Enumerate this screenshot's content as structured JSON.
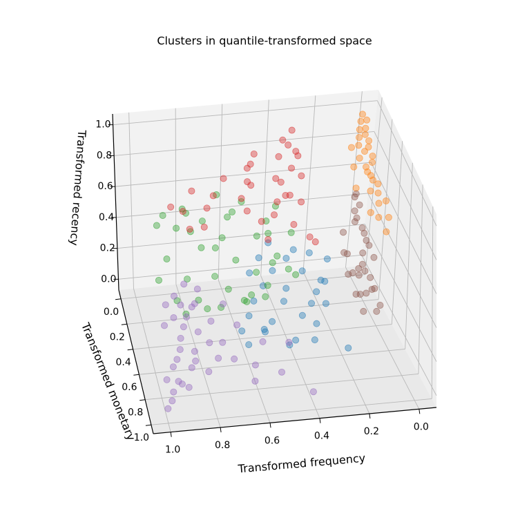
{
  "chart_data": {
    "type": "scatter3d",
    "title": "Clusters in quantile-transformed space",
    "xlabel": "Transformed frequency",
    "ylabel": "Transformed monetary",
    "zlabel": "Transformed recency",
    "xlim": [
      -0.07,
      1.07
    ],
    "ylim": [
      -0.07,
      1.07
    ],
    "zlim": [
      -0.07,
      1.07
    ],
    "xticks": [
      {
        "value": 0,
        "label": "0.0"
      },
      0.2,
      0.4,
      0.6,
      0.8,
      {
        "value": 1,
        "label": "1.0"
      }
    ],
    "yticks": [
      {
        "value": 0,
        "label": "0.0"
      },
      0.2,
      0.4,
      0.6,
      0.8,
      {
        "value": 1,
        "label": "1.0"
      }
    ],
    "zticks": [
      {
        "value": 0,
        "label": "0.0"
      },
      0.2,
      0.4,
      0.6,
      0.8,
      {
        "value": 1,
        "label": "1.0"
      }
    ],
    "grid": true,
    "series": [
      {
        "color": "#1f77b4",
        "x": [
          0.2,
          0.22,
          0.25,
          0.28,
          0.3,
          0.32,
          0.35,
          0.38,
          0.4,
          0.42,
          0.45,
          0.48,
          0.5,
          0.52,
          0.55,
          0.58,
          0.6,
          0.25,
          0.3,
          0.35,
          0.4,
          0.45,
          0.5,
          0.55,
          0.62,
          0.2,
          0.33,
          0.43,
          0.53,
          0.28
        ],
        "y": [
          0.3,
          0.35,
          0.4,
          0.3,
          0.45,
          0.35,
          0.5,
          0.3,
          0.4,
          0.45,
          0.35,
          0.5,
          0.4,
          0.55,
          0.45,
          0.5,
          0.6,
          0.5,
          0.55,
          0.3,
          0.6,
          0.25,
          0.3,
          0.35,
          0.55,
          0.7,
          0.65,
          0.62,
          0.58,
          0.45
        ],
        "z": [
          0.3,
          0.2,
          0.25,
          0.35,
          0.15,
          0.28,
          0.12,
          0.33,
          0.22,
          0.18,
          0.3,
          0.1,
          0.25,
          0.08,
          0.2,
          0.15,
          0.05,
          0.18,
          0.1,
          0.38,
          0.05,
          0.4,
          0.35,
          0.3,
          0.1,
          0.05,
          0.08,
          0.04,
          0.12,
          0.22
        ]
      },
      {
        "color": "#ff7f0e",
        "x": [
          0.01,
          0.02,
          0,
          0.03,
          0.01,
          0.04,
          0.02,
          0.05,
          0.01,
          0.03,
          0.02,
          0.06,
          0.01,
          0.04,
          0.02,
          0.03,
          0.05,
          0.01,
          0.04,
          0.02,
          0.06,
          0.03,
          0.01,
          0.05,
          0.02,
          0.04,
          0.08,
          0.07,
          0.09,
          0.06
        ],
        "y": [
          0.01,
          0.03,
          0.05,
          0.06,
          0.08,
          0.1,
          0.12,
          0.14,
          0.15,
          0.17,
          0.19,
          0.21,
          0.23,
          0.25,
          0.27,
          0.3,
          0.32,
          0.35,
          0.38,
          0.4,
          0.43,
          0.46,
          0.5,
          0.55,
          0.6,
          0.65,
          0.2,
          0.1,
          0.3,
          0.45
        ],
        "z": [
          0.98,
          0.95,
          0.97,
          0.92,
          0.94,
          0.9,
          0.93,
          0.88,
          0.91,
          0.86,
          0.9,
          0.85,
          0.87,
          0.82,
          0.86,
          0.8,
          0.84,
          0.78,
          0.83,
          0.76,
          0.8,
          0.74,
          0.78,
          0.72,
          0.75,
          0.7,
          0.79,
          0.84,
          0.73,
          0.68
        ]
      },
      {
        "color": "#2ca02c",
        "x": [
          0.95,
          0.9,
          0.88,
          0.85,
          0.82,
          0.8,
          0.78,
          0.75,
          0.72,
          0.7,
          0.68,
          0.65,
          0.62,
          0.6,
          0.58,
          0.55,
          0.52,
          0.5,
          0.48,
          0.45,
          0.42,
          0.4,
          0.38,
          0.35,
          0.9,
          0.85,
          0.8,
          0.75,
          0.7,
          0.65,
          0.6,
          0.55,
          0.5,
          0.45,
          0.92,
          0.78,
          0.66,
          0.58,
          0.44,
          0.36
        ],
        "y": [
          0.4,
          0.3,
          0.45,
          0.25,
          0.35,
          0.2,
          0.4,
          0.3,
          0.15,
          0.35,
          0.25,
          0.4,
          0.2,
          0.3,
          0.45,
          0.15,
          0.35,
          0.25,
          0.4,
          0.2,
          0.3,
          0.15,
          0.35,
          0.25,
          0.2,
          0.5,
          0.1,
          0.45,
          0.5,
          0.1,
          0.5,
          0.4,
          0.45,
          0.35,
          0.15,
          0.2,
          0.3,
          0.1,
          0.2,
          0.4
        ],
        "z": [
          0.35,
          0.4,
          0.25,
          0.55,
          0.3,
          0.6,
          0.2,
          0.45,
          0.5,
          0.3,
          0.4,
          0.25,
          0.55,
          0.35,
          0.2,
          0.6,
          0.3,
          0.45,
          0.25,
          0.5,
          0.35,
          0.55,
          0.3,
          0.45,
          0.6,
          0.2,
          0.55,
          0.18,
          0.22,
          0.62,
          0.25,
          0.2,
          0.22,
          0.35,
          0.5,
          0.48,
          0.5,
          0.5,
          0.42,
          0.3
        ]
      },
      {
        "color": "#d62728",
        "x": [
          0.32,
          0.34,
          0.3,
          0.36,
          0.33,
          0.38,
          0.31,
          0.35,
          0.4,
          0.37,
          0.29,
          0.42,
          0.34,
          0.39,
          0.3,
          0.36,
          0.5,
          0.52,
          0.48,
          0.55,
          0.5,
          0.53,
          0.47,
          0.51,
          0.62,
          0.66,
          0.7,
          0.75,
          0.8,
          0.85,
          0.72,
          0.78,
          0.25,
          0.28,
          0.45
        ],
        "y": [
          0.05,
          0.08,
          0.1,
          0.06,
          0.12,
          0.15,
          0.1,
          0.2,
          0.18,
          0.04,
          0.14,
          0.22,
          0.25,
          0.09,
          0.2,
          0.16,
          0.08,
          0.12,
          0.05,
          0.15,
          0.1,
          0.18,
          0.2,
          0.06,
          0.1,
          0.08,
          0.15,
          0.05,
          0.12,
          0.1,
          0.2,
          0.18,
          0.28,
          0.3,
          0.25
        ],
        "z": [
          0.95,
          0.88,
          0.82,
          0.9,
          0.76,
          0.7,
          0.85,
          0.65,
          0.6,
          0.78,
          0.72,
          0.55,
          0.5,
          0.68,
          0.6,
          0.62,
          0.78,
          0.7,
          0.82,
          0.62,
          0.66,
          0.56,
          0.5,
          0.74,
          0.72,
          0.6,
          0.58,
          0.62,
          0.55,
          0.57,
          0.5,
          0.48,
          0.4,
          0.45,
          0.42
        ]
      },
      {
        "color": "#9467bd",
        "x": [
          1.0,
          0.98,
          0.97,
          0.99,
          0.95,
          0.96,
          0.93,
          0.94,
          0.92,
          0.9,
          0.91,
          0.88,
          0.89,
          0.86,
          0.87,
          0.85,
          0.83,
          0.84,
          0.8,
          0.82,
          0.78,
          0.8,
          0.75,
          0.76,
          0.72,
          0.7,
          0.68,
          0.65,
          0.6,
          0.55,
          0.5,
          0.45,
          0.4,
          0.97,
          0.95,
          0.9,
          0.85,
          0.92,
          0.88,
          0.62
        ],
        "y": [
          1.0,
          0.98,
          0.95,
          0.9,
          0.96,
          0.88,
          0.92,
          0.85,
          0.8,
          0.9,
          0.75,
          0.85,
          0.7,
          0.8,
          0.65,
          0.75,
          0.7,
          0.6,
          0.78,
          0.55,
          0.68,
          0.5,
          0.72,
          0.6,
          0.65,
          0.55,
          0.7,
          0.6,
          0.75,
          0.65,
          0.8,
          0.7,
          0.95,
          0.7,
          0.6,
          0.5,
          0.45,
          0.62,
          0.55,
          0.85
        ],
        "z": [
          0.02,
          0.05,
          0.08,
          0.12,
          0.15,
          0.18,
          0.1,
          0.2,
          0.22,
          0.06,
          0.25,
          0.14,
          0.28,
          0.2,
          0.3,
          0.1,
          0.24,
          0.32,
          0.05,
          0.3,
          0.15,
          0.35,
          0.08,
          0.22,
          0.12,
          0.28,
          0.05,
          0.18,
          0.04,
          0.1,
          0.02,
          0.12,
          0,
          0.3,
          0.35,
          0.32,
          0.35,
          0.28,
          0.3,
          0.02
        ]
      },
      {
        "color": "#8c564b",
        "x": [
          0.02,
          0.01,
          0.04,
          0.03,
          0.05,
          0.02,
          0.06,
          0.01,
          0.03,
          0.04,
          0.02,
          0.05,
          0.01,
          0.03,
          0.06,
          0.02,
          0.04,
          0.01,
          0.03,
          0.08,
          0.07,
          0.1,
          0.09,
          0.06,
          0.08,
          0.05,
          0.03,
          0.02,
          0.04,
          0.07
        ],
        "y": [
          0.05,
          0.08,
          0.1,
          0.12,
          0.15,
          0.18,
          0.2,
          0.22,
          0.25,
          0.28,
          0.3,
          0.32,
          0.35,
          0.38,
          0.4,
          0.42,
          0.45,
          0.48,
          0.5,
          0.1,
          0.15,
          0.2,
          0.25,
          0.3,
          0.35,
          0.4,
          0.12,
          0.18,
          0.28,
          0.44
        ],
        "z": [
          0.5,
          0.45,
          0.52,
          0.4,
          0.47,
          0.38,
          0.44,
          0.33,
          0.4,
          0.3,
          0.36,
          0.26,
          0.32,
          0.22,
          0.28,
          0.18,
          0.2,
          0.12,
          0.1,
          0.3,
          0.2,
          0.25,
          0.15,
          0.22,
          0.1,
          0.14,
          0.05,
          0.08,
          0.04,
          0.06
        ]
      }
    ]
  }
}
